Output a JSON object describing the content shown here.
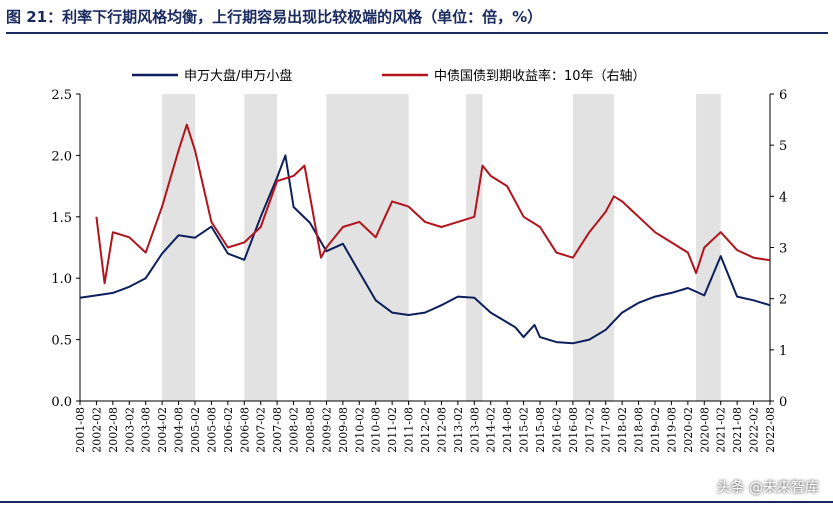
{
  "title": "图 21：利率下行期风格均衡，上行期容易出现比较极端的风格（单位：倍，%）",
  "watermark": "头条 @未来智库",
  "chart_data": {
    "type": "line",
    "series": [
      {
        "name": "申万大盘/申万小盘",
        "axis": "left",
        "color": "#0d1f5c",
        "x": [
          "2001-08",
          "2002-02",
          "2002-08",
          "2003-02",
          "2003-08",
          "2004-02",
          "2004-08",
          "2005-02",
          "2005-08",
          "2006-02",
          "2006-08",
          "2007-02",
          "2007-08",
          "2007-11",
          "2008-02",
          "2008-08",
          "2009-02",
          "2009-08",
          "2010-02",
          "2010-08",
          "2011-02",
          "2011-08",
          "2012-02",
          "2012-08",
          "2013-02",
          "2013-08",
          "2014-02",
          "2014-08",
          "2014-11",
          "2015-02",
          "2015-06",
          "2015-08",
          "2016-02",
          "2016-08",
          "2017-02",
          "2017-08",
          "2018-02",
          "2018-08",
          "2019-02",
          "2019-08",
          "2020-02",
          "2020-08",
          "2021-02",
          "2021-08",
          "2022-02",
          "2022-08"
        ],
        "values": [
          0.84,
          0.86,
          0.88,
          0.93,
          1.0,
          1.2,
          1.35,
          1.33,
          1.42,
          1.2,
          1.15,
          1.5,
          1.82,
          2.0,
          1.58,
          1.45,
          1.22,
          1.28,
          1.05,
          0.82,
          0.72,
          0.7,
          0.72,
          0.78,
          0.85,
          0.84,
          0.72,
          0.64,
          0.6,
          0.52,
          0.62,
          0.52,
          0.48,
          0.47,
          0.5,
          0.58,
          0.72,
          0.8,
          0.85,
          0.88,
          0.92,
          0.86,
          1.18,
          0.85,
          0.82,
          0.78
        ]
      },
      {
        "name": "中债国债到期收益率：10年（右轴）",
        "axis": "right",
        "color": "#b3131b",
        "x": [
          "2002-02",
          "2002-05",
          "2002-08",
          "2003-02",
          "2003-08",
          "2004-02",
          "2004-08",
          "2004-11",
          "2005-02",
          "2005-08",
          "2006-02",
          "2006-08",
          "2007-02",
          "2007-08",
          "2008-02",
          "2008-06",
          "2008-08",
          "2008-12",
          "2009-02",
          "2009-08",
          "2010-02",
          "2010-08",
          "2011-02",
          "2011-08",
          "2012-02",
          "2012-08",
          "2013-02",
          "2013-08",
          "2013-11",
          "2014-02",
          "2014-08",
          "2015-02",
          "2015-08",
          "2016-02",
          "2016-08",
          "2017-02",
          "2017-08",
          "2017-11",
          "2018-02",
          "2018-08",
          "2019-02",
          "2019-08",
          "2020-02",
          "2020-05",
          "2020-08",
          "2021-02",
          "2021-08",
          "2022-02",
          "2022-08"
        ],
        "values": [
          3.6,
          2.3,
          3.3,
          3.2,
          2.9,
          3.8,
          4.9,
          5.4,
          4.9,
          3.5,
          3.0,
          3.1,
          3.4,
          4.3,
          4.4,
          4.6,
          4.0,
          2.8,
          3.0,
          3.4,
          3.5,
          3.2,
          3.9,
          3.8,
          3.5,
          3.4,
          3.5,
          3.6,
          4.6,
          4.4,
          4.2,
          3.6,
          3.4,
          2.9,
          2.8,
          3.3,
          3.7,
          4.0,
          3.9,
          3.6,
          3.3,
          3.1,
          2.9,
          2.5,
          3.0,
          3.3,
          2.95,
          2.8,
          2.75
        ]
      }
    ],
    "shaded_periods": [
      [
        "2004-02",
        "2005-02"
      ],
      [
        "2006-08",
        "2007-08"
      ],
      [
        "2009-02",
        "2011-08"
      ],
      [
        "2013-05",
        "2013-11"
      ],
      [
        "2016-08",
        "2017-11"
      ],
      [
        "2020-05",
        "2021-02"
      ]
    ],
    "y_left": {
      "min": 0,
      "max": 2.5,
      "ticks": [
        "0.0",
        "0.5",
        "1.0",
        "1.5",
        "2.0",
        "2.5"
      ]
    },
    "y_right": {
      "min": 0,
      "max": 6,
      "ticks": [
        "0",
        "1",
        "2",
        "3",
        "4",
        "5",
        "6"
      ]
    },
    "x_ticks": [
      "2001-08",
      "2002-02",
      "2002-08",
      "2003-02",
      "2003-08",
      "2004-02",
      "2004-08",
      "2005-02",
      "2005-08",
      "2006-02",
      "2006-08",
      "2007-02",
      "2007-08",
      "2008-02",
      "2008-08",
      "2009-02",
      "2009-08",
      "2010-02",
      "2010-08",
      "2011-02",
      "2011-08",
      "2012-02",
      "2012-08",
      "2013-02",
      "2013-08",
      "2014-02",
      "2014-08",
      "2015-02",
      "2015-08",
      "2016-02",
      "2016-08",
      "2017-02",
      "2017-08",
      "2018-02",
      "2018-08",
      "2019-02",
      "2019-08",
      "2020-02",
      "2020-08",
      "2021-02",
      "2021-08",
      "2022-02",
      "2022-08"
    ],
    "legend_position": "top",
    "grid": false,
    "shade_color": "#e2e2e2"
  }
}
